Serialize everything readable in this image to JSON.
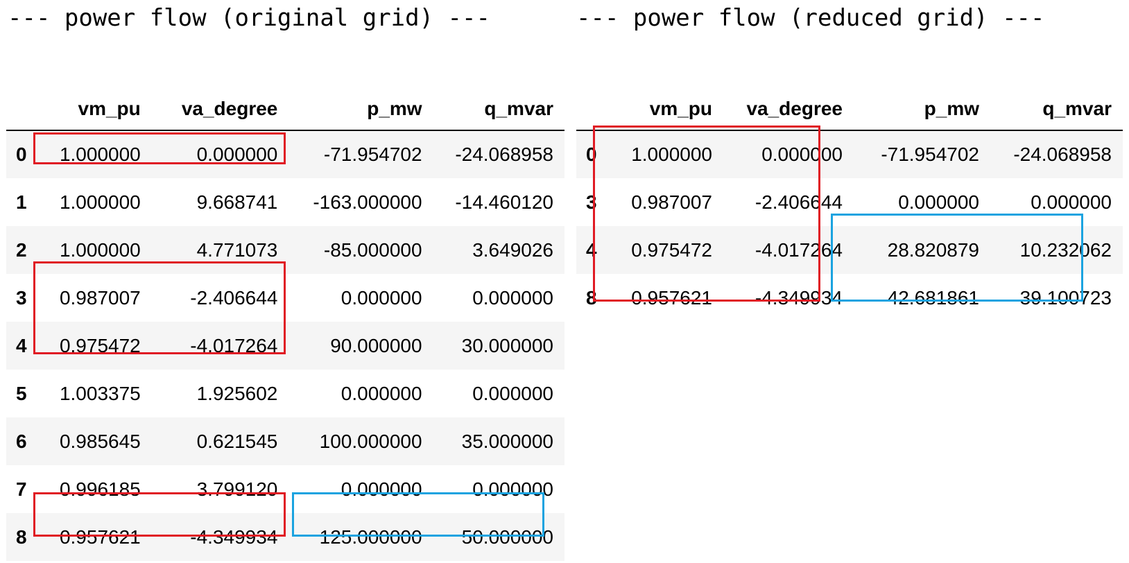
{
  "colors": {
    "highlight_red": "#e01b24",
    "highlight_blue": "#1aa3e0",
    "row_stripe": "#f5f5f5"
  },
  "original": {
    "title": "--- power flow (original grid) ---",
    "columns": [
      "vm_pu",
      "va_degree",
      "p_mw",
      "q_mvar"
    ],
    "rows": [
      {
        "index": "0",
        "vm_pu": "1.000000",
        "va_degree": "0.000000",
        "p_mw": "-71.954702",
        "q_mvar": "-24.068958"
      },
      {
        "index": "1",
        "vm_pu": "1.000000",
        "va_degree": "9.668741",
        "p_mw": "-163.000000",
        "q_mvar": "-14.460120"
      },
      {
        "index": "2",
        "vm_pu": "1.000000",
        "va_degree": "4.771073",
        "p_mw": "-85.000000",
        "q_mvar": "3.649026"
      },
      {
        "index": "3",
        "vm_pu": "0.987007",
        "va_degree": "-2.406644",
        "p_mw": "0.000000",
        "q_mvar": "0.000000"
      },
      {
        "index": "4",
        "vm_pu": "0.975472",
        "va_degree": "-4.017264",
        "p_mw": "90.000000",
        "q_mvar": "30.000000"
      },
      {
        "index": "5",
        "vm_pu": "1.003375",
        "va_degree": "1.925602",
        "p_mw": "0.000000",
        "q_mvar": "0.000000"
      },
      {
        "index": "6",
        "vm_pu": "0.985645",
        "va_degree": "0.621545",
        "p_mw": "100.000000",
        "q_mvar": "35.000000"
      },
      {
        "index": "7",
        "vm_pu": "0.996185",
        "va_degree": "3.799120",
        "p_mw": "0.000000",
        "q_mvar": "0.000000"
      },
      {
        "index": "8",
        "vm_pu": "0.957621",
        "va_degree": "-4.349934",
        "p_mw": "125.000000",
        "q_mvar": "50.000000"
      }
    ]
  },
  "reduced": {
    "title": "--- power flow (reduced grid) ---",
    "columns": [
      "vm_pu",
      "va_degree",
      "p_mw",
      "q_mvar"
    ],
    "rows": [
      {
        "index": "0",
        "vm_pu": "1.000000",
        "va_degree": "0.000000",
        "p_mw": "-71.954702",
        "q_mvar": "-24.068958"
      },
      {
        "index": "3",
        "vm_pu": "0.987007",
        "va_degree": "-2.406644",
        "p_mw": "0.000000",
        "q_mvar": "0.000000"
      },
      {
        "index": "4",
        "vm_pu": "0.975472",
        "va_degree": "-4.017264",
        "p_mw": "28.820879",
        "q_mvar": "10.232062"
      },
      {
        "index": "8",
        "vm_pu": "0.957621",
        "va_degree": "-4.349934",
        "p_mw": "42.681861",
        "q_mvar": "39.100723"
      }
    ]
  }
}
